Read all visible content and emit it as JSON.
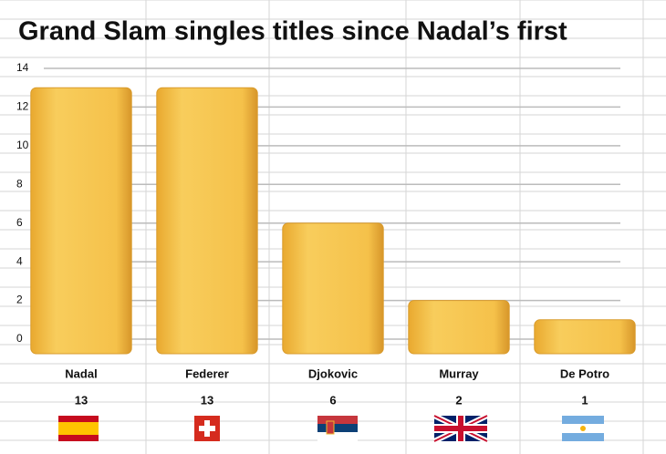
{
  "chart_data": {
    "type": "bar",
    "title": "Grand Slam singles titles since Nadal’s first",
    "categories": [
      "Nadal",
      "Federer",
      "Djokovic",
      "Murray",
      "De Potro"
    ],
    "values": [
      13,
      13,
      6,
      2,
      1
    ],
    "color": "#f4bd45",
    "ylim": [
      0,
      14
    ],
    "yticks": [
      0,
      2,
      4,
      6,
      8,
      10,
      12,
      14
    ],
    "grid": true
  }
}
